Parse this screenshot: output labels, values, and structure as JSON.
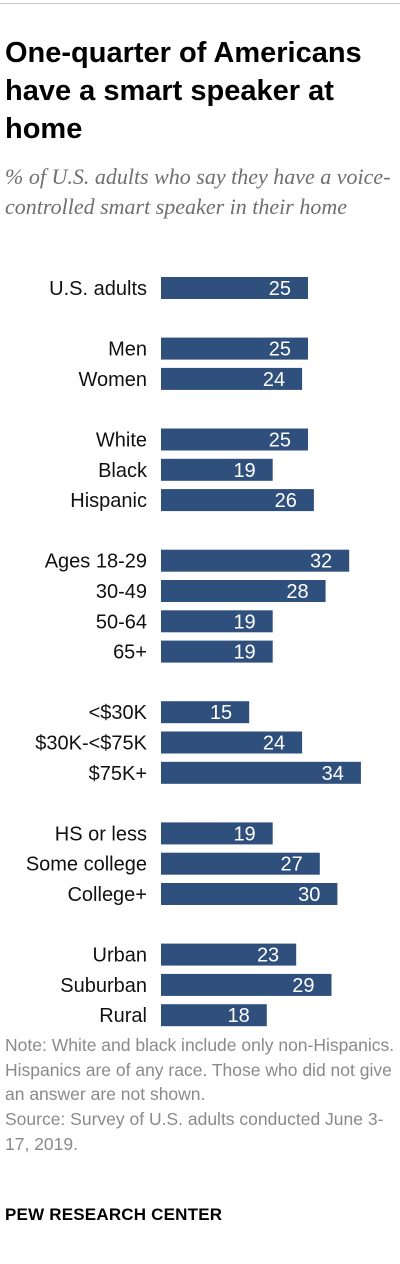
{
  "title": "One-quarter of Americans have a smart speaker at home",
  "subtitle": "% of U.S. adults who say they have a voice-controlled smart speaker in their home",
  "note": "Note: White and black include only non-Hispanics. Hispanics are of any race. Those who did not give an answer are not shown.",
  "source": "Source: Survey of U.S. adults conducted June 3-17, 2019.",
  "brand": "PEW RESEARCH CENTER",
  "colors": {
    "bar": "#2f4f7c",
    "value_text": "#ffffff"
  },
  "chart_data": {
    "type": "bar",
    "orientation": "horizontal",
    "groups": [
      {
        "items": [
          {
            "label": "U.S. adults",
            "value": 25
          }
        ]
      },
      {
        "items": [
          {
            "label": "Men",
            "value": 25
          },
          {
            "label": "Women",
            "value": 24
          }
        ]
      },
      {
        "items": [
          {
            "label": "White",
            "value": 25
          },
          {
            "label": "Black",
            "value": 19
          },
          {
            "label": "Hispanic",
            "value": 26
          }
        ]
      },
      {
        "items": [
          {
            "label": "Ages 18-29",
            "value": 32
          },
          {
            "label": "30-49",
            "value": 28
          },
          {
            "label": "50-64",
            "value": 19
          },
          {
            "label": "65+",
            "value": 19
          }
        ]
      },
      {
        "items": [
          {
            "label": "<$30K",
            "value": 15
          },
          {
            "label": "$30K-<$75K",
            "value": 24
          },
          {
            "label": "$75K+",
            "value": 34
          }
        ]
      },
      {
        "items": [
          {
            "label": "HS or less",
            "value": 19
          },
          {
            "label": "Some college",
            "value": 27
          },
          {
            "label": "College+",
            "value": 30
          }
        ]
      },
      {
        "items": [
          {
            "label": "Urban",
            "value": 23
          },
          {
            "label": "Suburban",
            "value": 29
          },
          {
            "label": "Rural",
            "value": 18
          }
        ]
      }
    ],
    "xlim": [
      0,
      34
    ],
    "grid": false,
    "legend": "none"
  }
}
